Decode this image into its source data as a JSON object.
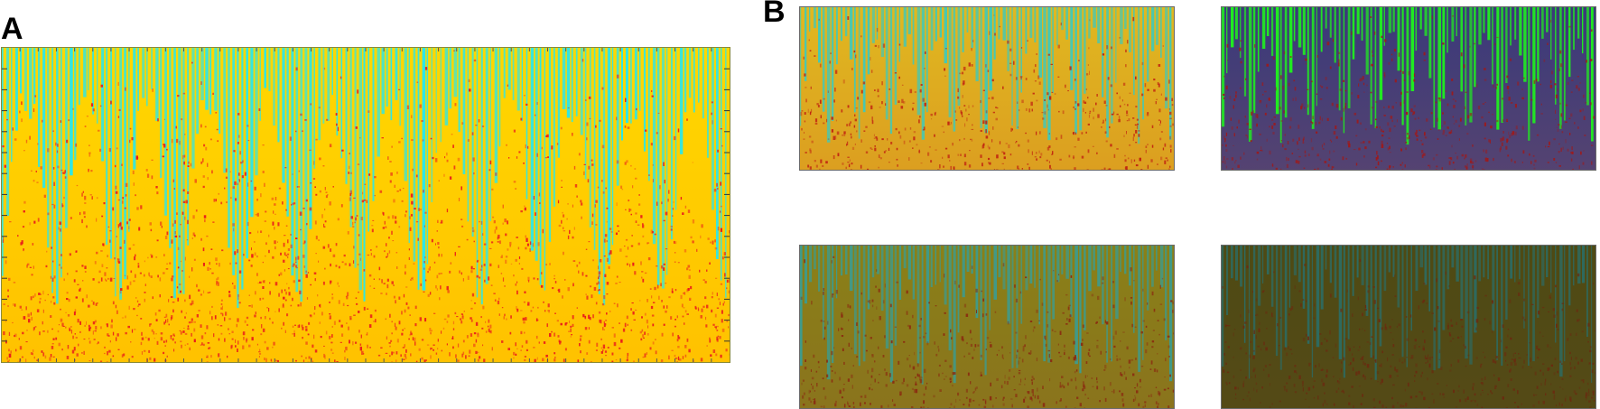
{
  "figure": {
    "panel_a": {
      "label": "A"
    },
    "panel_b": {
      "label": "B"
    }
  },
  "panels": [
    {
      "id": "panel-a",
      "variant": "original-spectrogram",
      "colors": {
        "bg": "#ffd700",
        "stripe": "#2ee6e6",
        "hot": "#e8141c",
        "mid": "#ffb000"
      }
    },
    {
      "id": "b-tl",
      "variant": "smoothed-spectrogram",
      "colors": {
        "bg": "#e0b820",
        "stripe": "#43c8b6",
        "hot": "#c02010",
        "mid": "#d88a20"
      }
    },
    {
      "id": "b-tr",
      "variant": "green-channel-map",
      "colors": {
        "bg": "#3a3a7a",
        "stripe": "#20ee20",
        "hot": "#a01818",
        "mid": "#6a4a6a"
      }
    },
    {
      "id": "b-bl",
      "variant": "dimmed-spectrogram",
      "colors": {
        "bg": "#8a8018",
        "stripe": "#3f9a8a",
        "hot": "#8a2a10",
        "mid": "#8a6a20"
      }
    },
    {
      "id": "b-br",
      "variant": "dark-spectrogram",
      "colors": {
        "bg": "#4e4a14",
        "stripe": "#2e6a60",
        "hot": "#6a2a10",
        "mid": "#5a4a18"
      }
    }
  ]
}
